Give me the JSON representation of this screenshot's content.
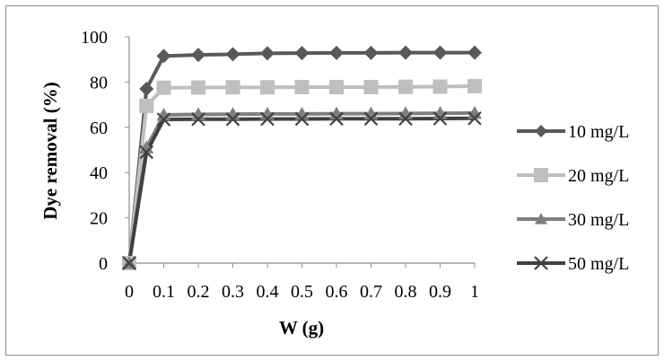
{
  "chart_data": {
    "type": "line",
    "title": "",
    "xlabel": "W (g)",
    "ylabel": "Dye removal (%)",
    "ylim": [
      0,
      100
    ],
    "yticks": [
      "0",
      "20",
      "40",
      "60",
      "80",
      "100"
    ],
    "xticks": [
      "0",
      "0.1",
      "0.2",
      "0.3",
      "0.4",
      "0.5",
      "0.6",
      "0.7",
      "0.8",
      "0.9",
      "1"
    ],
    "x": [
      0,
      0.05,
      0.1,
      0.2,
      0.3,
      0.4,
      0.5,
      0.6,
      0.7,
      0.8,
      0.9,
      1
    ],
    "grid": false,
    "legend_position": "right",
    "series": [
      {
        "name": "10 mg/L",
        "marker": "diamond",
        "color": "#595959",
        "values": [
          0,
          77,
          91.5,
          92,
          92.3,
          92.7,
          92.8,
          92.9,
          92.9,
          93,
          93,
          93
        ]
      },
      {
        "name": "20 mg/L",
        "marker": "square",
        "color": "#bfbfbf",
        "values": [
          0,
          69.5,
          77.5,
          77.6,
          77.7,
          77.7,
          77.8,
          77.8,
          77.8,
          77.9,
          78,
          78.2
        ]
      },
      {
        "name": "30 mg/L",
        "marker": "triangle",
        "color": "#7f7f7f",
        "values": [
          0,
          51,
          65.5,
          65.7,
          65.8,
          65.9,
          65.9,
          66,
          66,
          66.1,
          66.2,
          66.3
        ]
      },
      {
        "name": "50 mg/L",
        "marker": "x",
        "color": "#404040",
        "values": [
          0,
          49,
          63.5,
          63.6,
          63.6,
          63.7,
          63.7,
          63.8,
          63.8,
          63.8,
          63.9,
          64
        ]
      }
    ]
  }
}
